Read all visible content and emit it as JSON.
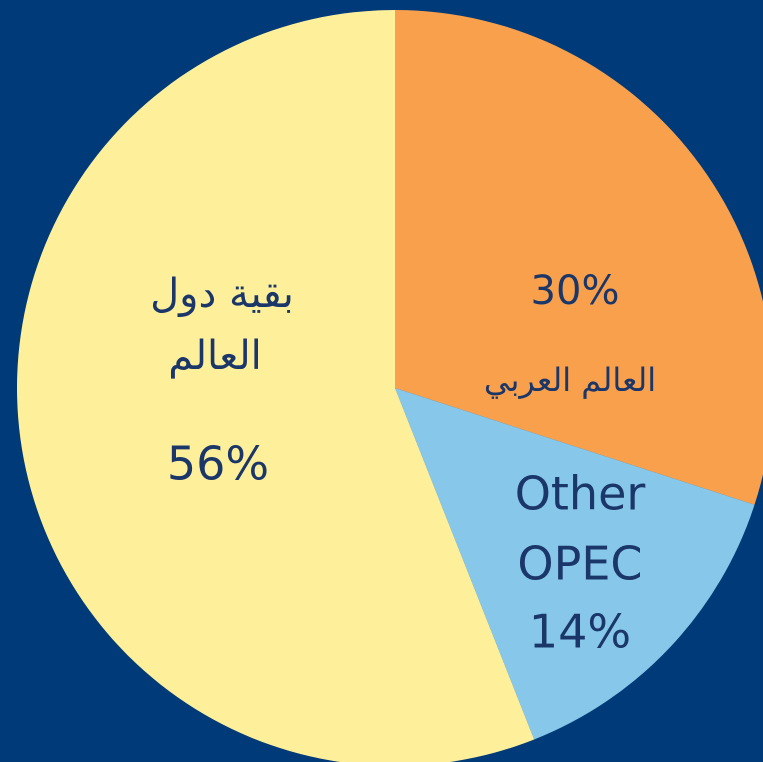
{
  "chart_data": {
    "type": "pie",
    "categories": [
      [
        "العالم العربي"
      ],
      [
        "Other",
        "OPEC"
      ],
      [
        "بقية دول",
        "العالم"
      ]
    ],
    "values": [
      30,
      14,
      56
    ],
    "value_labels": [
      "30%",
      "14%",
      "56%"
    ],
    "colors": [
      "#f9a04c",
      "#87c8ea",
      "#fef09b"
    ]
  }
}
